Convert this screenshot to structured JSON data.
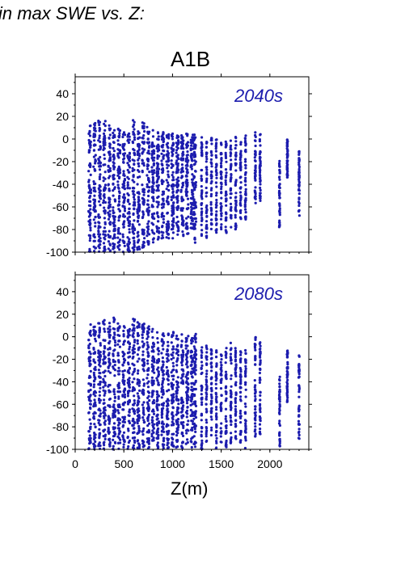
{
  "header": {
    "title": "in max SWE vs. Z:"
  },
  "scenario": "A1B",
  "colors": {
    "points": "#1c1cae",
    "panel_label": "#1c1cae",
    "axis": "#000000"
  },
  "chart_data": [
    {
      "type": "scatter",
      "panel_label": "2040s",
      "xlabel": "Z(m)",
      "ylabel": "",
      "xlim": [
        0,
        2400
      ],
      "ylim": [
        -100,
        55
      ],
      "y_ticks": [
        -100,
        -80,
        -60,
        -40,
        -20,
        0,
        20,
        40
      ],
      "x_tick_labels_shown": false,
      "note_points": "dense vertical strips of points at grid-cell elevations",
      "strips": [
        {
          "x": 150,
          "ymin": -100,
          "ymax": 12
        },
        {
          "x": 200,
          "ymin": -100,
          "ymax": 15
        },
        {
          "x": 250,
          "ymin": -100,
          "ymax": 17
        },
        {
          "x": 300,
          "ymin": -100,
          "ymax": 16
        },
        {
          "x": 350,
          "ymin": -100,
          "ymax": 13
        },
        {
          "x": 400,
          "ymin": -100,
          "ymax": 15
        },
        {
          "x": 450,
          "ymin": -100,
          "ymax": 12
        },
        {
          "x": 500,
          "ymin": -100,
          "ymax": 10
        },
        {
          "x": 550,
          "ymin": -100,
          "ymax": 8
        },
        {
          "x": 600,
          "ymin": -100,
          "ymax": 17
        },
        {
          "x": 650,
          "ymin": -98,
          "ymax": 16
        },
        {
          "x": 700,
          "ymin": -96,
          "ymax": 15
        },
        {
          "x": 750,
          "ymin": -95,
          "ymax": 12
        },
        {
          "x": 800,
          "ymin": -93,
          "ymax": 8
        },
        {
          "x": 850,
          "ymin": -90,
          "ymax": 6
        },
        {
          "x": 900,
          "ymin": -88,
          "ymax": 6
        },
        {
          "x": 950,
          "ymin": -88,
          "ymax": 5
        },
        {
          "x": 1000,
          "ymin": -88,
          "ymax": 5
        },
        {
          "x": 1050,
          "ymin": -86,
          "ymax": 5
        },
        {
          "x": 1100,
          "ymin": -86,
          "ymax": 4
        },
        {
          "x": 1150,
          "ymin": -84,
          "ymax": 5
        },
        {
          "x": 1200,
          "ymin": -80,
          "ymax": 4
        },
        {
          "x": 1230,
          "ymin": -92,
          "ymax": 5
        },
        {
          "x": 1300,
          "ymin": -88,
          "ymax": 2
        },
        {
          "x": 1350,
          "ymin": -90,
          "ymax": 0
        },
        {
          "x": 1400,
          "ymin": -80,
          "ymax": 1
        },
        {
          "x": 1450,
          "ymin": -85,
          "ymax": 0
        },
        {
          "x": 1500,
          "ymin": -82,
          "ymax": -2
        },
        {
          "x": 1550,
          "ymin": -86,
          "ymax": 0
        },
        {
          "x": 1600,
          "ymin": -78,
          "ymax": 3
        },
        {
          "x": 1650,
          "ymin": -80,
          "ymax": 2
        },
        {
          "x": 1700,
          "ymin": -75,
          "ymax": 1
        },
        {
          "x": 1750,
          "ymin": -72,
          "ymax": 3
        },
        {
          "x": 1850,
          "ymin": -60,
          "ymax": 6
        },
        {
          "x": 1900,
          "ymin": -55,
          "ymax": 5
        },
        {
          "x": 2100,
          "ymin": -78,
          "ymax": -16
        },
        {
          "x": 2180,
          "ymin": -35,
          "ymax": 0
        },
        {
          "x": 2300,
          "ymin": -68,
          "ymax": -8
        }
      ]
    },
    {
      "type": "scatter",
      "panel_label": "2080s",
      "xlabel": "Z(m)",
      "ylabel": "",
      "xlim": [
        0,
        2400
      ],
      "ylim": [
        -100,
        55
      ],
      "y_ticks": [
        -100,
        -80,
        -60,
        -40,
        -20,
        0,
        20,
        40
      ],
      "x_ticks": [
        0,
        500,
        1000,
        1500,
        2000
      ],
      "note_points": "dense vertical strips of points at grid-cell elevations",
      "strips": [
        {
          "x": 150,
          "ymin": -100,
          "ymax": 12
        },
        {
          "x": 200,
          "ymin": -100,
          "ymax": 9
        },
        {
          "x": 250,
          "ymin": -100,
          "ymax": 12
        },
        {
          "x": 300,
          "ymin": -100,
          "ymax": 15
        },
        {
          "x": 350,
          "ymin": -100,
          "ymax": 13
        },
        {
          "x": 400,
          "ymin": -100,
          "ymax": 17
        },
        {
          "x": 450,
          "ymin": -100,
          "ymax": 12
        },
        {
          "x": 500,
          "ymin": -100,
          "ymax": 10
        },
        {
          "x": 550,
          "ymin": -100,
          "ymax": 8
        },
        {
          "x": 600,
          "ymin": -100,
          "ymax": 17
        },
        {
          "x": 650,
          "ymin": -100,
          "ymax": 16
        },
        {
          "x": 700,
          "ymin": -100,
          "ymax": 12
        },
        {
          "x": 750,
          "ymin": -100,
          "ymax": 10
        },
        {
          "x": 800,
          "ymin": -100,
          "ymax": 8
        },
        {
          "x": 850,
          "ymin": -100,
          "ymax": 5
        },
        {
          "x": 900,
          "ymin": -100,
          "ymax": 4
        },
        {
          "x": 950,
          "ymin": -100,
          "ymax": 6
        },
        {
          "x": 1000,
          "ymin": -100,
          "ymax": 5
        },
        {
          "x": 1050,
          "ymin": -100,
          "ymax": 3
        },
        {
          "x": 1100,
          "ymin": -100,
          "ymax": 2
        },
        {
          "x": 1150,
          "ymin": -98,
          "ymax": 2
        },
        {
          "x": 1200,
          "ymin": -100,
          "ymax": 0
        },
        {
          "x": 1230,
          "ymin": -100,
          "ymax": 3
        },
        {
          "x": 1300,
          "ymin": -100,
          "ymax": -5
        },
        {
          "x": 1350,
          "ymin": -98,
          "ymax": -8
        },
        {
          "x": 1400,
          "ymin": -96,
          "ymax": -10
        },
        {
          "x": 1450,
          "ymin": -100,
          "ymax": -12
        },
        {
          "x": 1500,
          "ymin": -96,
          "ymax": -15
        },
        {
          "x": 1550,
          "ymin": -98,
          "ymax": -10
        },
        {
          "x": 1600,
          "ymin": -95,
          "ymax": -5
        },
        {
          "x": 1650,
          "ymin": -92,
          "ymax": -8
        },
        {
          "x": 1700,
          "ymin": -96,
          "ymax": -12
        },
        {
          "x": 1750,
          "ymin": -100,
          "ymax": -10
        },
        {
          "x": 1850,
          "ymin": -90,
          "ymax": 0
        },
        {
          "x": 1900,
          "ymin": -88,
          "ymax": -5
        },
        {
          "x": 2100,
          "ymin": -98,
          "ymax": -35
        },
        {
          "x": 2180,
          "ymin": -60,
          "ymax": -10
        },
        {
          "x": 2300,
          "ymin": -92,
          "ymax": -15
        }
      ]
    }
  ]
}
